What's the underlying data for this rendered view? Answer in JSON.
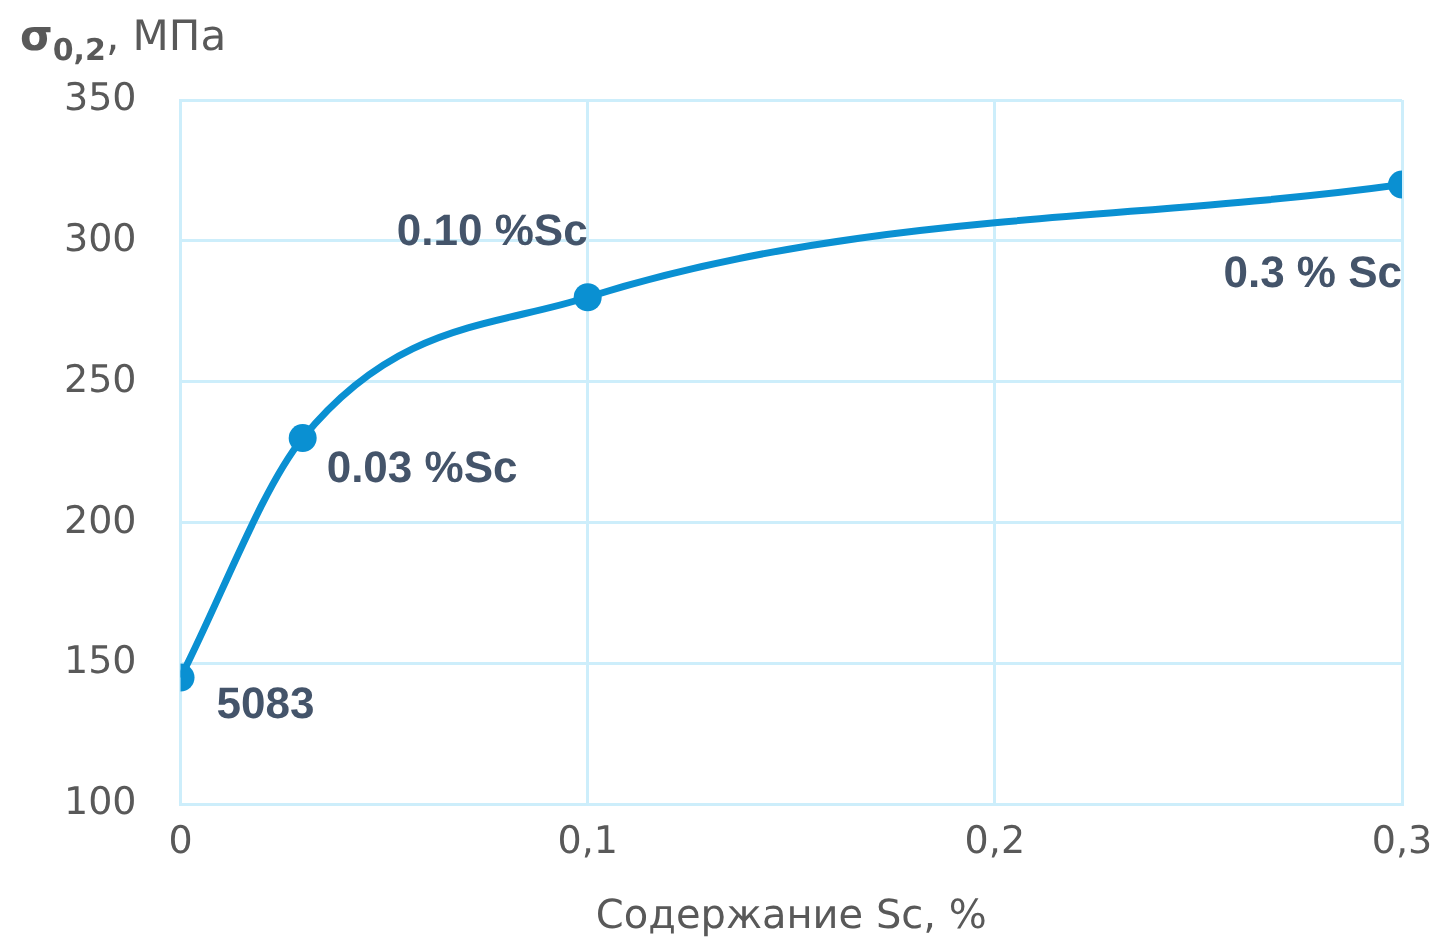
{
  "chart_data": {
    "type": "line",
    "xlabel": "Содержание Sc, %",
    "ylabel": "σ$_{0,2}$, МПа",
    "x": [
      0,
      0.03,
      0.1,
      0.3
    ],
    "series": [
      {
        "color": "#0a90d2",
        "values": [
          145,
          230,
          280,
          320
        ]
      }
    ],
    "xlim": [
      0,
      0.3
    ],
    "xticks": [
      0,
      {
        "value": 0.1,
        "label": "0,1"
      },
      {
        "value": 0.2,
        "label": "0,2"
      },
      {
        "value": 0.3,
        "label": "0,3"
      }
    ],
    "ylim": [
      100,
      350
    ],
    "yticks": [
      100,
      150,
      200,
      250,
      300,
      350
    ],
    "grid": true,
    "legend": false,
    "marker": "circle",
    "line_style": "solid",
    "annotations": [
      {
        "text": "5083",
        "x": 0,
        "y": 145
      },
      {
        "text": "0.03 %Sc",
        "x": 0.03,
        "y": 230
      },
      {
        "text": "0.10 %Sc",
        "x": 0.1,
        "y": 280
      },
      {
        "text": "0.3 % Sc",
        "x": 0.3,
        "y": 320
      }
    ]
  }
}
